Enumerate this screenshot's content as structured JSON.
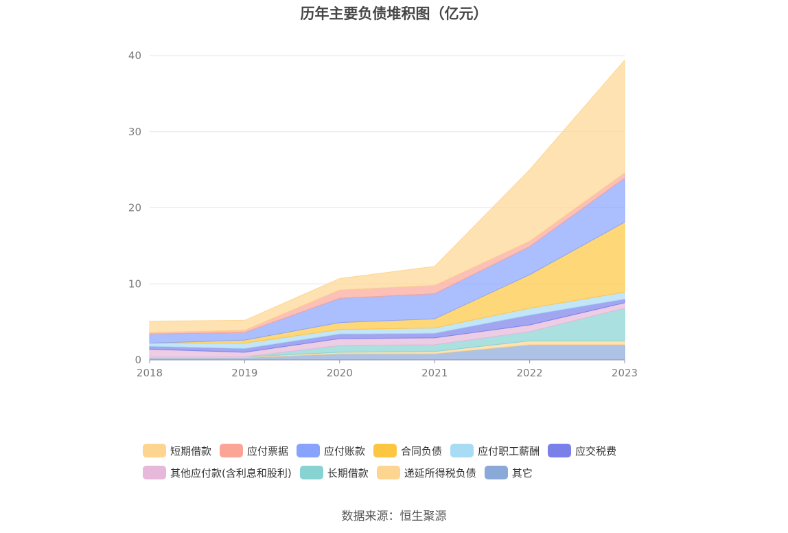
{
  "title": "历年主要负债堆积图（亿元）",
  "source": "数据来源：恒生聚源",
  "chart_data": {
    "type": "area",
    "stacked": true,
    "title": "历年主要负债堆积图（亿元）",
    "categories": [
      "2018",
      "2019",
      "2020",
      "2021",
      "2022",
      "2023"
    ],
    "ylim": [
      0,
      40
    ],
    "yticks": [
      "0",
      "10",
      "20",
      "30",
      "40"
    ],
    "grid": true,
    "legend_position": "bottom",
    "series": [
      {
        "name": "其它",
        "color": "#8aa8d8",
        "values": [
          0.3,
          0.3,
          0.8,
          0.8,
          2.0,
          2.0
        ]
      },
      {
        "name": "递延所得税负债",
        "color": "#fdd590",
        "values": [
          0.1,
          0.1,
          0.2,
          0.3,
          0.5,
          0.5
        ]
      },
      {
        "name": "长期借款",
        "color": "#86d3d1",
        "values": [
          0.0,
          0.0,
          0.9,
          0.9,
          1.2,
          4.3
        ]
      },
      {
        "name": "其他应付款(含利息和股利)",
        "color": "#e6b8d9",
        "values": [
          1.0,
          0.6,
          0.9,
          0.9,
          0.9,
          0.7
        ]
      },
      {
        "name": "应交税费",
        "color": "#7b7fea",
        "values": [
          0.4,
          0.5,
          0.6,
          0.6,
          1.3,
          0.5
        ]
      },
      {
        "name": "应付职工薪酬",
        "color": "#a8dcf5",
        "values": [
          0.4,
          0.7,
          0.6,
          0.7,
          0.9,
          0.9
        ]
      },
      {
        "name": "合同负债",
        "color": "#fdc640",
        "values": [
          0.0,
          0.4,
          0.9,
          1.2,
          4.4,
          9.2
        ]
      },
      {
        "name": "应付账款",
        "color": "#88a3fc",
        "values": [
          1.2,
          1.0,
          3.2,
          3.3,
          3.7,
          5.8
        ]
      },
      {
        "name": "应付票据",
        "color": "#fba597",
        "values": [
          0.2,
          0.3,
          1.1,
          1.1,
          0.7,
          0.7
        ]
      },
      {
        "name": "短期借款",
        "color": "#fdd590",
        "values": [
          1.5,
          1.3,
          1.5,
          2.5,
          9.4,
          14.8
        ]
      }
    ]
  },
  "legend": [
    {
      "label": "短期借款",
      "color": "#fdd590"
    },
    {
      "label": "应付票据",
      "color": "#fba597"
    },
    {
      "label": "应付账款",
      "color": "#88a3fc"
    },
    {
      "label": "合同负债",
      "color": "#fdc640"
    },
    {
      "label": "应付职工薪酬",
      "color": "#a8dcf5"
    },
    {
      "label": "应交税费",
      "color": "#7b7fea"
    },
    {
      "label": "其他应付款(含利息和股利)",
      "color": "#e6b8d9"
    },
    {
      "label": "长期借款",
      "color": "#86d3d1"
    },
    {
      "label": "递延所得税负债",
      "color": "#fdd590"
    },
    {
      "label": "其它",
      "color": "#8aa8d8"
    }
  ]
}
